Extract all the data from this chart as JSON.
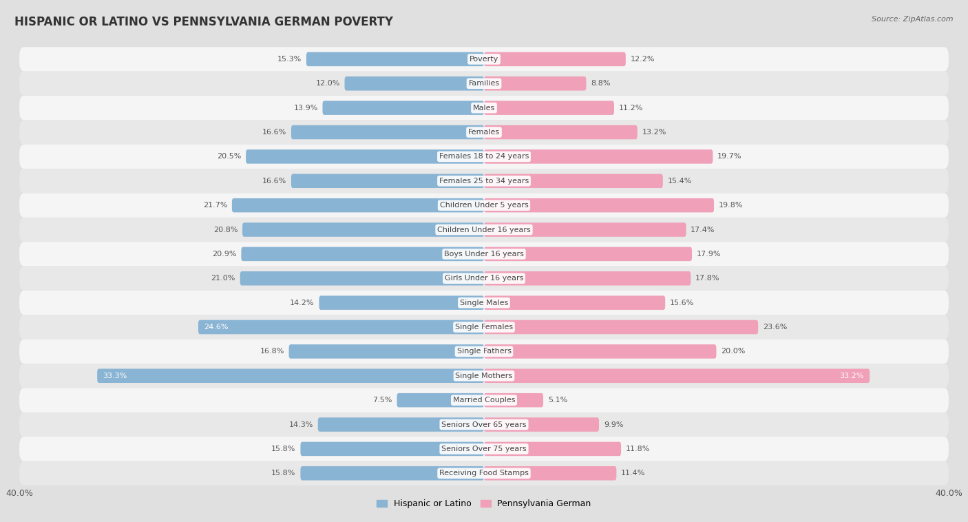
{
  "title": "HISPANIC OR LATINO VS PENNSYLVANIA GERMAN POVERTY",
  "source": "Source: ZipAtlas.com",
  "categories": [
    "Poverty",
    "Families",
    "Males",
    "Females",
    "Females 18 to 24 years",
    "Females 25 to 34 years",
    "Children Under 5 years",
    "Children Under 16 years",
    "Boys Under 16 years",
    "Girls Under 16 years",
    "Single Males",
    "Single Females",
    "Single Fathers",
    "Single Mothers",
    "Married Couples",
    "Seniors Over 65 years",
    "Seniors Over 75 years",
    "Receiving Food Stamps"
  ],
  "hispanic_values": [
    15.3,
    12.0,
    13.9,
    16.6,
    20.5,
    16.6,
    21.7,
    20.8,
    20.9,
    21.0,
    14.2,
    24.6,
    16.8,
    33.3,
    7.5,
    14.3,
    15.8,
    15.8
  ],
  "pa_german_values": [
    12.2,
    8.8,
    11.2,
    13.2,
    19.7,
    15.4,
    19.8,
    17.4,
    17.9,
    17.8,
    15.6,
    23.6,
    20.0,
    33.2,
    5.1,
    9.9,
    11.8,
    11.4
  ],
  "hispanic_color": "#8ab4d4",
  "pa_german_color": "#f0a0b8",
  "row_color_even": "#f5f5f5",
  "row_color_odd": "#e8e8e8",
  "background_color": "#e0e0e0",
  "axis_limit": 40.0,
  "bar_height": 0.58,
  "legend_labels": [
    "Hispanic or Latino",
    "Pennsylvania German"
  ],
  "title_fontsize": 12,
  "label_fontsize": 8.5,
  "value_fontsize": 8,
  "cat_label_fontsize": 8
}
